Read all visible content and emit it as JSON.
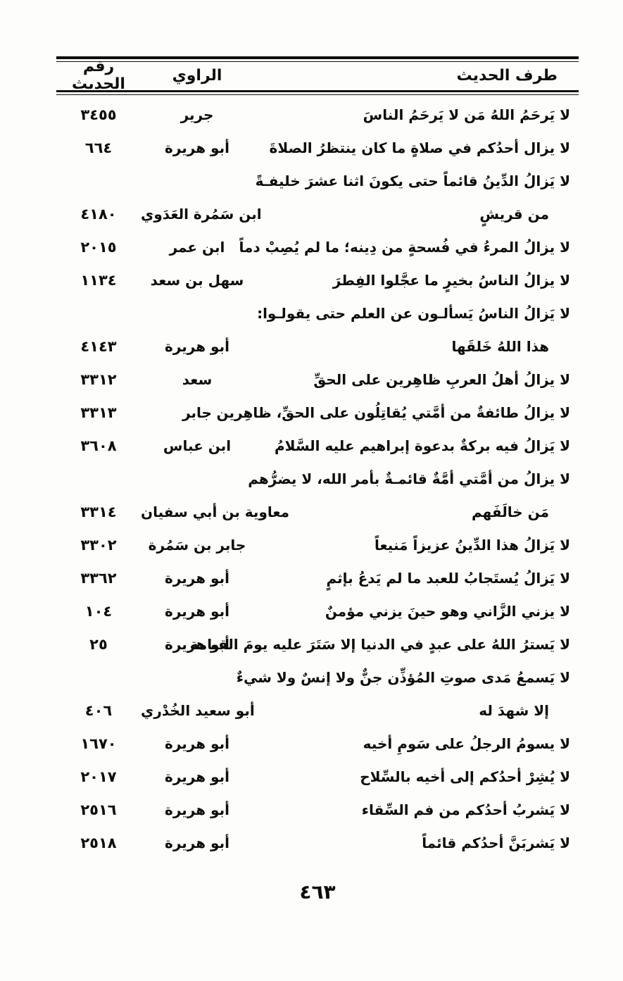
{
  "page": {
    "number": "٤٦٣"
  },
  "colors": {
    "ink": "#0e0d0b",
    "paper": "#fdfdfb"
  },
  "table": {
    "headers": {
      "hadith": "طرف الحديث",
      "narrator": "الراوي",
      "number": "رقم الحديث"
    },
    "rows": [
      {
        "lines": [
          "لا يَرحَمُ اللهُ مَن لا يَرحَمُ الناسَ"
        ],
        "narrator": "جرير",
        "number": "٣٤٥٥"
      },
      {
        "lines": [
          "لا يزال أحدُكم في صلاةٍ ما كان ينتظرُ الصلاةَ"
        ],
        "narrator": "أبو هريرة",
        "number": "٦٦٤"
      },
      {
        "lines": [
          "لا يَزالُ الدِّينُ قائماً حتى يكونَ اثنا عشرَ خليفـةً",
          "من قريشٍ"
        ],
        "narrator": "ابن سَمُرة العَدَوي",
        "number": "٤١٨٠"
      },
      {
        "lines": [
          "لا يزالُ المرءُ في فُسحةٍ من دِينه؛ ما لم يُصِبْ دماً"
        ],
        "narrator": "ابن عمر",
        "number": "٢٠١٥"
      },
      {
        "lines": [
          "لا يزالُ الناسُ بخيرٍ ما عجَّلوا الفِطرَ"
        ],
        "narrator": "سهل بن سعد",
        "number": "١١٣٤"
      },
      {
        "lines": [
          "لا يَزالُ الناسُ يَسألـون عن العلم حتى يقولـوا:",
          "هذا اللهُ خَلقَها"
        ],
        "narrator": "أبو هريرة",
        "number": "٤١٤٣"
      },
      {
        "lines": [
          "لا يزالُ أهلُ العربِ ظاهِرين على الحقِّ"
        ],
        "narrator": "سعد",
        "number": "٣٣١٢"
      },
      {
        "lines": [
          "لا يزالُ طائفةٌ من أمَّتي يُقاتِلُون على الحقِّ، ظاهِرين"
        ],
        "narrator": "جابر",
        "number": "٣٣١٣"
      },
      {
        "lines": [
          "لا يَزالُ فيه بركةٌ بدعوة إبراهيم عليه السَّلامُ"
        ],
        "narrator": "ابن عباس",
        "number": "٣٦٠٨"
      },
      {
        "lines": [
          "لا يزالُ من أمَّتي أمَّةٌ قائمـةٌ بأمر الله، لا يضرُّهم",
          "مَن خالَفَهم"
        ],
        "narrator": "معاوية بن أبي سفيان",
        "number": "٣٣١٤"
      },
      {
        "lines": [
          "لا يَزالُ هذا الدِّينُ عزيزاً مَنيعاً"
        ],
        "narrator": "جابر بن سَمُرة",
        "number": "٣٣٠٢"
      },
      {
        "lines": [
          "لا يَزالُ يُستَجابُ للعبد ما لم يَدعُ بإثمٍ"
        ],
        "narrator": "أبو هريرة",
        "number": "٣٣٦٢"
      },
      {
        "lines": [
          "لا يزني الزَّاني وهو حينَ يزني مؤمنٌ"
        ],
        "narrator": "أبو هريرة",
        "number": "١٠٤"
      },
      {
        "lines": [
          "لا يَسترُ اللهُ على عبدٍ في الدنيا إلا سَتَرَ عليه يومَ القيامة"
        ],
        "narrator": "أبو هريرة",
        "number": "٢٥"
      },
      {
        "lines": [
          "لا يَسمعُ مَدى صوتِ المُؤذِّن جنٌّ ولا إنسٌ ولا شيءٌ",
          "إلا شهدَ له"
        ],
        "narrator": "أبو سعيد الخُدْري",
        "number": "٤٠٦"
      },
      {
        "lines": [
          "لا يسومُ الرجلُ على سَومِ أخيه"
        ],
        "narrator": "أبو هريرة",
        "number": "١٦٧٠"
      },
      {
        "lines": [
          "لا يُشِرْ أحدُكم إلى أخيه بالسِّلاح"
        ],
        "narrator": "أبو هريرة",
        "number": "٢٠١٧"
      },
      {
        "lines": [
          "لا يَشربُ أحدُكم من فم السِّقاء"
        ],
        "narrator": "أبو هريرة",
        "number": "٢٥١٦"
      },
      {
        "lines": [
          "لا يَشربَنَّ أحدُكم قائماً"
        ],
        "narrator": "أبو هريرة",
        "number": "٢٥١٨"
      }
    ]
  }
}
